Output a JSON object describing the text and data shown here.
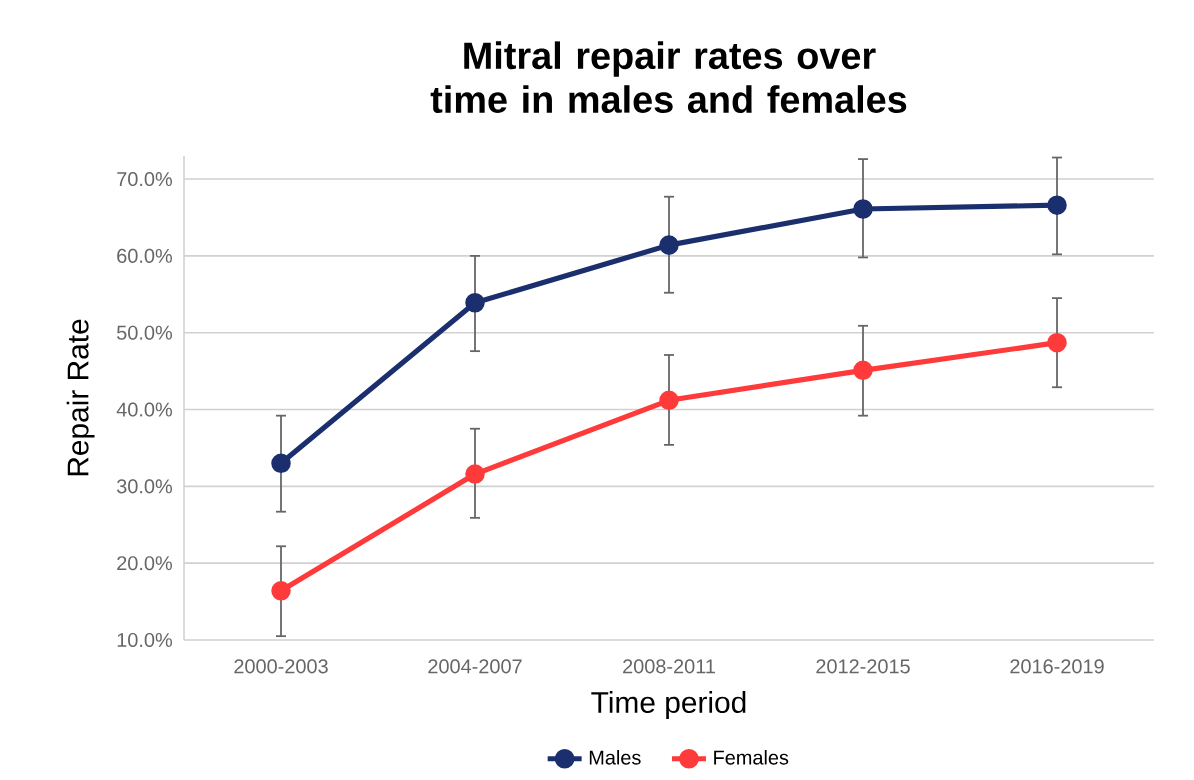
{
  "chart_data": {
    "type": "line",
    "title": "Mitral repair rates over time in males and females",
    "xlabel": "Time period",
    "ylabel": "Repair Rate",
    "categories": [
      "2000-2003",
      "2004-2007",
      "2008-2011",
      "2012-2015",
      "2016-2019"
    ],
    "series": [
      {
        "name": "Males",
        "color": "#1b2f6e",
        "values": [
          33.0,
          53.9,
          61.4,
          66.1,
          66.6
        ],
        "errors": [
          [
            26.7,
            39.2
          ],
          [
            47.6,
            60.0
          ],
          [
            55.2,
            67.7
          ],
          [
            59.8,
            72.6
          ],
          [
            60.2,
            72.8
          ]
        ]
      },
      {
        "name": "Females",
        "color": "#ff3a3a",
        "values": [
          16.4,
          31.6,
          41.2,
          45.1,
          48.7
        ],
        "errors": [
          [
            10.5,
            22.2
          ],
          [
            25.9,
            37.5
          ],
          [
            35.4,
            47.1
          ],
          [
            39.2,
            50.9
          ],
          [
            42.9,
            54.5
          ]
        ]
      }
    ],
    "ylim": [
      10,
      73
    ],
    "yticks": [
      {
        "value": 10,
        "label": "10.0%"
      },
      {
        "value": 20,
        "label": "20.0%"
      },
      {
        "value": 30,
        "label": "30.0%"
      },
      {
        "value": 40,
        "label": "40.0%"
      },
      {
        "value": 50,
        "label": "50.0%"
      },
      {
        "value": 60,
        "label": "60.0%"
      },
      {
        "value": 70,
        "label": "70.0%"
      }
    ],
    "grid": "y",
    "legend": "bottom",
    "marker": "circle",
    "line_style": "solid"
  }
}
